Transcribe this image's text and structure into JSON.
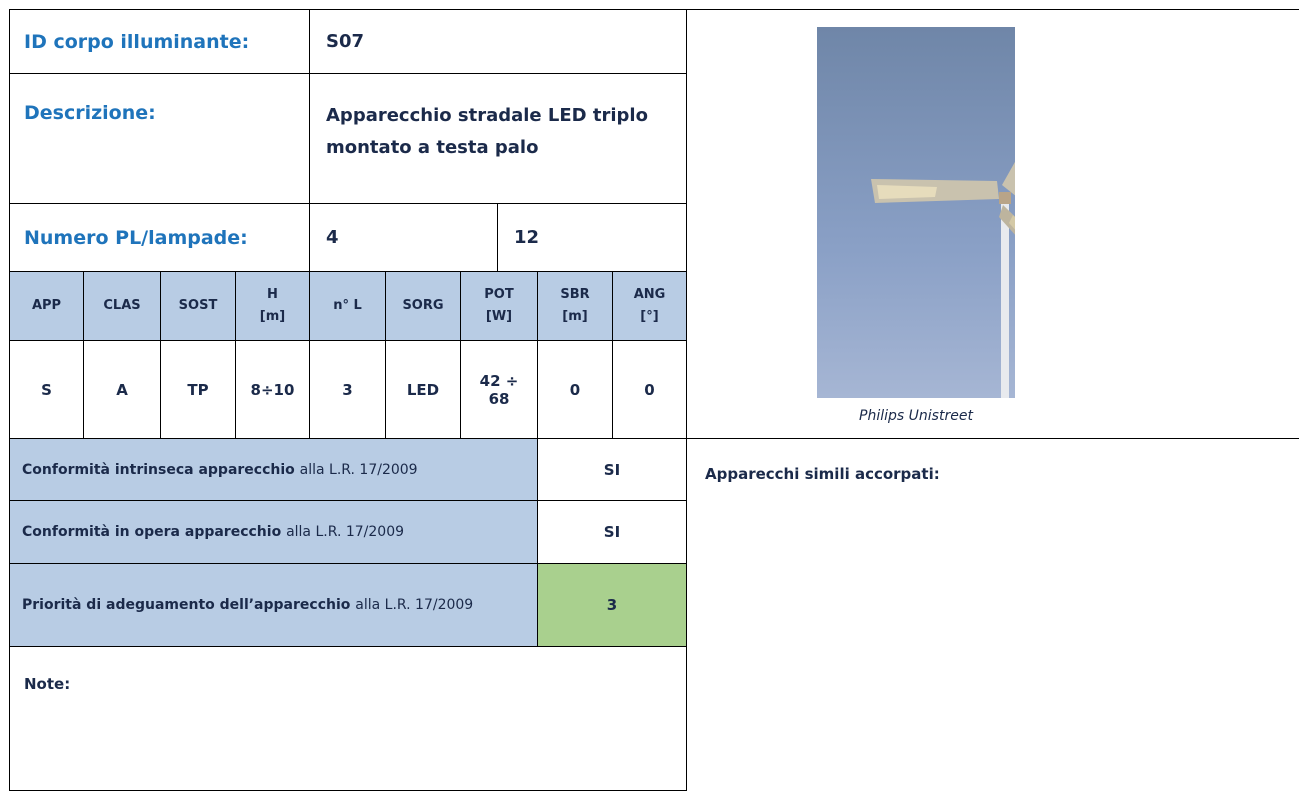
{
  "id_label": "ID corpo illuminante:",
  "id_value": "S07",
  "description_label": "Descrizione:",
  "description_value": "Apparecchio stradale LED triplo montato a testa palo",
  "count_label": "Numero PL/lampade:",
  "count_values": [
    4,
    12
  ],
  "table": {
    "header": [
      {
        "name": "APP"
      },
      {
        "name": "CLAS"
      },
      {
        "name": "SOST"
      },
      {
        "name": "H",
        "unit": "[m]"
      },
      {
        "name": "n° L"
      },
      {
        "name": "SORG"
      },
      {
        "name": "POT",
        "unit": "[W]"
      },
      {
        "name": "SBR",
        "unit": "[m]"
      },
      {
        "name": "ANG",
        "unit": "[°]"
      }
    ],
    "row": [
      "S",
      "A",
      "TP",
      "8÷10",
      3,
      "LED",
      "42 ÷ 68",
      0,
      0
    ]
  },
  "compliance": [
    {
      "label_bold": "Conformità intrinseca apparecchio",
      "label_rest": "alla L.R. 17/2009",
      "value": "SI"
    },
    {
      "label_bold": "Conformità in opera apparecchio",
      "label_rest": "alla L.R. 17/2009",
      "value": "SI"
    },
    {
      "label_bold": "Priorità di adeguamento dell’apparecchio",
      "label_rest": "alla L.R. 17/2009",
      "value": 3
    }
  ],
  "notes_label": "Note:",
  "photo_caption": "Philips Unistreet",
  "similar_label": "Apparecchi simili accorpati:"
}
